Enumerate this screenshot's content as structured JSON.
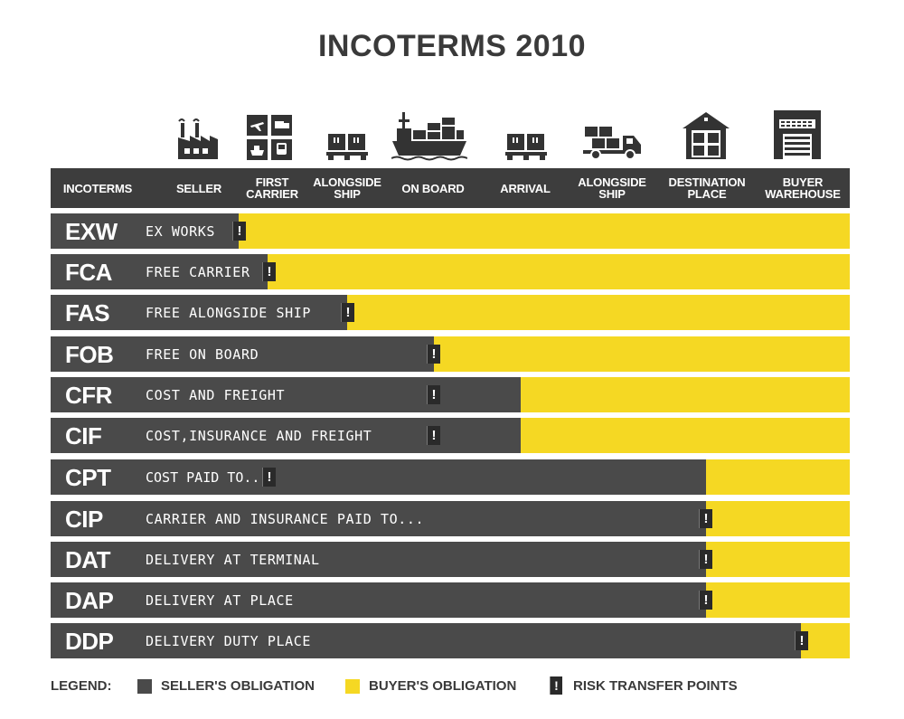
{
  "title": "INCOTERMS 2010",
  "icons": [
    {
      "name": "factory-icon"
    },
    {
      "name": "transport-modes-icon"
    },
    {
      "name": "pallet-boxes-icon"
    },
    {
      "name": "cargo-ship-icon"
    },
    {
      "name": "pallet-boxes-icon"
    },
    {
      "name": "delivery-truck-icon"
    },
    {
      "name": "warehouse-icon"
    },
    {
      "name": "buyer-building-icon"
    }
  ],
  "header": {
    "incoterms": "INCOTERMS",
    "columns": [
      {
        "line1": "SELLER",
        "line2": ""
      },
      {
        "line1": "FIRST",
        "line2": "CARRIER"
      },
      {
        "line1": "ALONGSIDE",
        "line2": "SHIP"
      },
      {
        "line1": "ON BOARD",
        "line2": ""
      },
      {
        "line1": "ARRIVAL",
        "line2": ""
      },
      {
        "line1": "ALONGSIDE",
        "line2": "SHIP"
      },
      {
        "line1": "DESTINATION",
        "line2": "PLACE"
      },
      {
        "line1": "BUYER",
        "line2": "WAREHOUSE"
      }
    ]
  },
  "terms": [
    {
      "code": "EXW",
      "name": "EX WORKS",
      "seller_until": "Seller",
      "risk_at": "Seller"
    },
    {
      "code": "FCA",
      "name": "FREE CARRIER",
      "seller_until": "First carrier",
      "risk_at": "First carrier"
    },
    {
      "code": "FAS",
      "name": "FREE ALONGSIDE SHIP",
      "seller_until": "Alongside ship",
      "risk_at": "Alongside ship"
    },
    {
      "code": "FOB",
      "name": "FREE ON BOARD",
      "seller_until": "On board",
      "risk_at": "On board"
    },
    {
      "code": "CFR",
      "name": "COST AND FREIGHT",
      "seller_until": "Arrival",
      "risk_at": "On board"
    },
    {
      "code": "CIF",
      "name": "COST,INSURANCE AND FREIGHT",
      "seller_until": "Arrival",
      "risk_at": "On board"
    },
    {
      "code": "CPT",
      "name": "COST PAID TO...",
      "seller_until": "Destination place",
      "risk_at": "First carrier"
    },
    {
      "code": "CIP",
      "name": "CARRIER AND INSURANCE PAID TO...",
      "seller_until": "Destination place",
      "risk_at": "Destination place"
    },
    {
      "code": "DAT",
      "name": "DELIVERY AT TERMINAL",
      "seller_until": "Destination place",
      "risk_at": "Destination place"
    },
    {
      "code": "DAP",
      "name": "DELIVERY AT PLACE",
      "seller_until": "Destination place",
      "risk_at": "Destination place"
    },
    {
      "code": "DDP",
      "name": "DELIVERY DUTY PLACE",
      "seller_until": "Buyer warehouse",
      "risk_at": "Buyer warehouse"
    }
  ],
  "risk_mark": "!",
  "legend": {
    "label": "LEGEND:",
    "seller": "SELLER'S OBLIGATION",
    "buyer": "BUYER'S OBLIGATION",
    "risk": "RISK TRANSFER POINTS"
  },
  "colors": {
    "seller": "#4a4a4a",
    "buyer": "#f5d823",
    "header": "#3d3d3d",
    "risk": "#2a2a2a"
  }
}
